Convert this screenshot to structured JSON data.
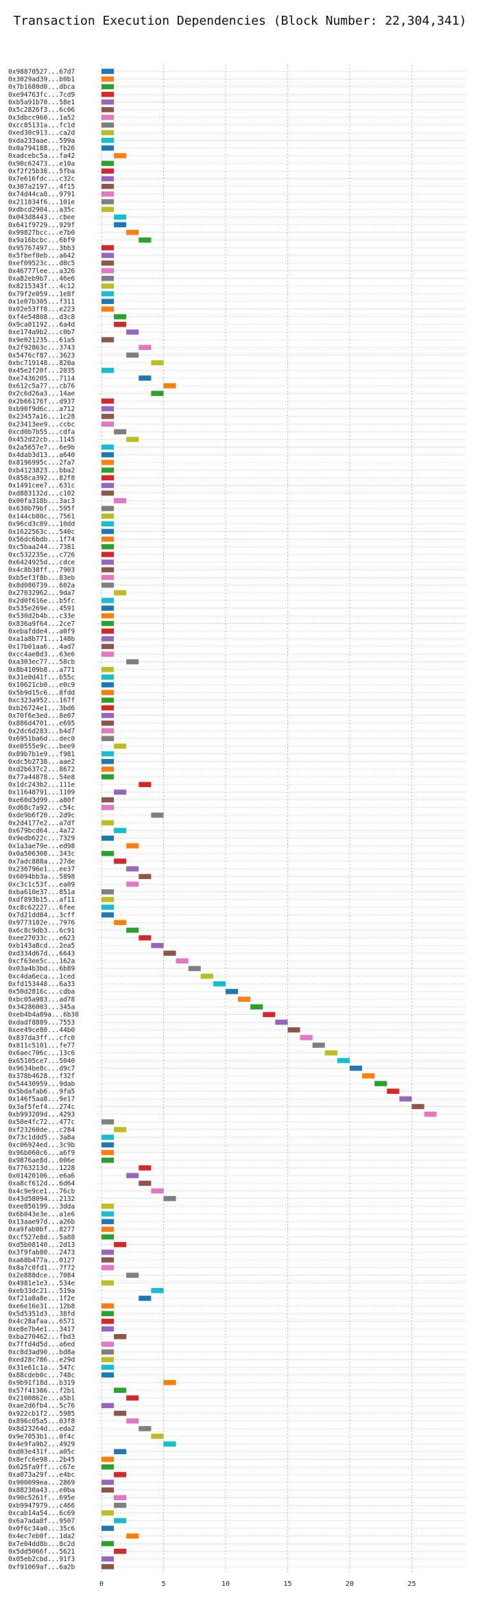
{
  "chart_data": {
    "type": "gantt",
    "title": "Transaction Execution Dependencies (Block Number: 22,304,341)",
    "xlabel": "",
    "ylabel": "",
    "xlim": [
      -1,
      28.5
    ],
    "xticks": [
      0,
      5,
      10,
      15,
      20,
      25
    ],
    "grid": true,
    "palette": [
      "#1f77b4",
      "#ff7f0e",
      "#2ca02c",
      "#d62728",
      "#9467bd",
      "#8c564b",
      "#e377c2",
      "#7f7f7f",
      "#bcbd22",
      "#17becf"
    ],
    "transactions": [
      {
        "label": "0x98870527...67d7",
        "start": 0
      },
      {
        "label": "0x3029ad39...b0b1",
        "start": 0
      },
      {
        "label": "0x7b1680d0...dbca",
        "start": 0
      },
      {
        "label": "0xe94763fc...7cd9",
        "start": 0
      },
      {
        "label": "0xb5a91b70...58e1",
        "start": 0
      },
      {
        "label": "0x5c2826f3...6c06",
        "start": 0
      },
      {
        "label": "0x3dbcc960...1a52",
        "start": 0
      },
      {
        "label": "0xcc85131a...fc1d",
        "start": 0
      },
      {
        "label": "0xed30c913...ca2d",
        "start": 0
      },
      {
        "label": "0xda233aae...599a",
        "start": 0
      },
      {
        "label": "0x0a794188...fb26",
        "start": 0
      },
      {
        "label": "0xadcebc5a...fa42",
        "start": 1
      },
      {
        "label": "0x90c62473...e10a",
        "start": 0
      },
      {
        "label": "0xf2f25b38...5fba",
        "start": 0
      },
      {
        "label": "0x7e616fdc...c32c",
        "start": 0
      },
      {
        "label": "0x307a2197...4f15",
        "start": 0
      },
      {
        "label": "0x74d44ca8...9791",
        "start": 0
      },
      {
        "label": "0x211834f6...101e",
        "start": 0
      },
      {
        "label": "0xdbcd2904...a35c",
        "start": 0
      },
      {
        "label": "0x043d8443...cbee",
        "start": 1
      },
      {
        "label": "0x641f9729...929f",
        "start": 1
      },
      {
        "label": "0x99827bcc...e7b0",
        "start": 2
      },
      {
        "label": "0x9a16bcbc...6bf9",
        "start": 3
      },
      {
        "label": "0x95767497...3bb3",
        "start": 0
      },
      {
        "label": "0x5fbef0eb...a642",
        "start": 0
      },
      {
        "label": "0xef09523c...d8c5",
        "start": 0
      },
      {
        "label": "0x46777lee...a326",
        "start": 0
      },
      {
        "label": "0xa82eb9b7...46e6",
        "start": 0
      },
      {
        "label": "0x8215343f...4c12",
        "start": 0
      },
      {
        "label": "0x79f2e059...1e8f",
        "start": 0
      },
      {
        "label": "0x1e07b305...f311",
        "start": 0
      },
      {
        "label": "0x02e53ff8...e223",
        "start": 0
      },
      {
        "label": "0xf4e54808...d3c8",
        "start": 1
      },
      {
        "label": "0x9ca01192...6a4d",
        "start": 1
      },
      {
        "label": "0xe174a9b2...c0b7",
        "start": 2
      },
      {
        "label": "0x9e021235...61a5",
        "start": 0
      },
      {
        "label": "0x2f92863c...3743",
        "start": 3
      },
      {
        "label": "0x5476cf87...3623",
        "start": 2
      },
      {
        "label": "0xbc719148...820a",
        "start": 4
      },
      {
        "label": "0x45e2f20f...2035",
        "start": 0
      },
      {
        "label": "0xe7436205...7114",
        "start": 3
      },
      {
        "label": "0x612c5a77...cb76",
        "start": 5
      },
      {
        "label": "0x2c6d26a3...14ae",
        "start": 4
      },
      {
        "label": "0x2b66176f...d937",
        "start": 0
      },
      {
        "label": "0xb90f9d6c...a712",
        "start": 0
      },
      {
        "label": "0x23457a16...1c28",
        "start": 0
      },
      {
        "label": "0x23413ee9...ccbc",
        "start": 0
      },
      {
        "label": "0xcd0b7b55...cdfa",
        "start": 1
      },
      {
        "label": "0x452d22cb...1145",
        "start": 2
      },
      {
        "label": "0x2a5657e7...6e9b",
        "start": 0
      },
      {
        "label": "0x4dab3d13...a640",
        "start": 0
      },
      {
        "label": "0x8196995c...2fa7",
        "start": 0
      },
      {
        "label": "0xb4123823...bba2",
        "start": 0
      },
      {
        "label": "0x858ca392...82f8",
        "start": 0
      },
      {
        "label": "0x1491cee7...631c",
        "start": 0
      },
      {
        "label": "0xd883132d...c102",
        "start": 0
      },
      {
        "label": "0x00fa318b...3ac3",
        "start": 1
      },
      {
        "label": "0x630b79bf...595f",
        "start": 0
      },
      {
        "label": "0x144cb80c...7561",
        "start": 0
      },
      {
        "label": "0x96cd3c89...10dd",
        "start": 0
      },
      {
        "label": "0x1622563c...540c",
        "start": 0
      },
      {
        "label": "0x56dc6bdb...1f74",
        "start": 0
      },
      {
        "label": "0xc5baa244...7381",
        "start": 0
      },
      {
        "label": "0xc532235e...c726",
        "start": 0
      },
      {
        "label": "0x6424925d...cdce",
        "start": 0
      },
      {
        "label": "0x4c8b38ff...7903",
        "start": 0
      },
      {
        "label": "0xb5ef3f8b...83eb",
        "start": 0
      },
      {
        "label": "0x8d080739...602a",
        "start": 0
      },
      {
        "label": "0x27032962...9da7",
        "start": 1
      },
      {
        "label": "0x2d0f616e...b5fc",
        "start": 0
      },
      {
        "label": "0x535e269e...4591",
        "start": 0
      },
      {
        "label": "0x530d2b4b...c33e",
        "start": 0
      },
      {
        "label": "0x836a9f64...2ce7",
        "start": 0
      },
      {
        "label": "0xebafdde4...a0f9",
        "start": 0
      },
      {
        "label": "0xa1a8b771...148b",
        "start": 0
      },
      {
        "label": "0x17b01aa6...4ad7",
        "start": 0
      },
      {
        "label": "0xcc4ae8d3...63e6",
        "start": 0
      },
      {
        "label": "0xa303ec77...58cb",
        "start": 2
      },
      {
        "label": "0x8b4109b8...a771",
        "start": 0
      },
      {
        "label": "0x31e0d41f...b55c",
        "start": 0
      },
      {
        "label": "0x10621cb0...e0c9",
        "start": 0
      },
      {
        "label": "0x5b9d15c6...8fdd",
        "start": 0
      },
      {
        "label": "0xc323a952...167f",
        "start": 0
      },
      {
        "label": "0xb26724e1...3bd6",
        "start": 0
      },
      {
        "label": "0x70f6e3ed...8e07",
        "start": 0
      },
      {
        "label": "0x886d4701...e695",
        "start": 0
      },
      {
        "label": "0x2dc6d283...b4d7",
        "start": 0
      },
      {
        "label": "0x6951ba6d...dec0",
        "start": 0
      },
      {
        "label": "0xe0555e9c...bee9",
        "start": 1
      },
      {
        "label": "0x89b7b1e9...f981",
        "start": 0
      },
      {
        "label": "0xdc5b2738...aae2",
        "start": 0
      },
      {
        "label": "0xd2b637c2...8672",
        "start": 0
      },
      {
        "label": "0x77a44878...54e8",
        "start": 0
      },
      {
        "label": "0x1dc243b2...111e",
        "start": 3
      },
      {
        "label": "0x11648791...1109",
        "start": 1
      },
      {
        "label": "0xe60d3d99...a80f",
        "start": 0
      },
      {
        "label": "0xd68c7a92...c54c",
        "start": 0
      },
      {
        "label": "0xde9b6f20...2d9c",
        "start": 4
      },
      {
        "label": "0x2d4177e2...a7df",
        "start": 0
      },
      {
        "label": "0x679bcd64...4a72",
        "start": 1
      },
      {
        "label": "0x9edb622c...7329",
        "start": 0
      },
      {
        "label": "0x1a3ae79e...ed98",
        "start": 2
      },
      {
        "label": "0x0a506308...343c",
        "start": 0
      },
      {
        "label": "0x7adc888a...27de",
        "start": 1
      },
      {
        "label": "0x230796e1...ee37",
        "start": 2
      },
      {
        "label": "0x6094bb3a...5898",
        "start": 3
      },
      {
        "label": "0xc3c1c53f...ea09",
        "start": 2
      },
      {
        "label": "0xba610e37...851a",
        "start": 0
      },
      {
        "label": "0xdf893b15...af11",
        "start": 0
      },
      {
        "label": "0xc8c62227...6fee",
        "start": 0
      },
      {
        "label": "0x7d21dd84...3cff",
        "start": 0
      },
      {
        "label": "0x9773182e...7976",
        "start": 1
      },
      {
        "label": "0x6c8c9db3...6c91",
        "start": 2
      },
      {
        "label": "0xee27033c...e623",
        "start": 3
      },
      {
        "label": "0xb143a8cd...2ea5",
        "start": 4
      },
      {
        "label": "0xd334d67d...6643",
        "start": 5
      },
      {
        "label": "0xcf63ee5c...162a",
        "start": 6
      },
      {
        "label": "0x03a4b3bd...6b89",
        "start": 7
      },
      {
        "label": "0xc4da6eca...1ced",
        "start": 8
      },
      {
        "label": "0xfd153448...6a33",
        "start": 9
      },
      {
        "label": "0x50d2816c...cdba",
        "start": 10
      },
      {
        "label": "0xbc05a983...ad78",
        "start": 11
      },
      {
        "label": "0x34286003...345a",
        "start": 12
      },
      {
        "label": "0xeb4b4a89a...6b30",
        "start": 13
      },
      {
        "label": "0xdadf8889...7553",
        "start": 14
      },
      {
        "label": "0xee49ce80...44b0",
        "start": 15
      },
      {
        "label": "0x837da3ff...cfc0",
        "start": 16
      },
      {
        "label": "0x811c5101...fe77",
        "start": 17
      },
      {
        "label": "0x6aec706c...13c6",
        "start": 18
      },
      {
        "label": "0x65105ce7...5040",
        "start": 19
      },
      {
        "label": "0x9634be8c...d9c7",
        "start": 20
      },
      {
        "label": "0x378b4628...f32f",
        "start": 21
      },
      {
        "label": "0x54430959...9dab",
        "start": 22
      },
      {
        "label": "0x5bdafab6...9fa5",
        "start": 23
      },
      {
        "label": "0x146f5aa8...9e17",
        "start": 24
      },
      {
        "label": "0x3af5fef4...274c",
        "start": 25
      },
      {
        "label": "0xb993209d...4293",
        "start": 26
      },
      {
        "label": "0x50e4fc72...477c",
        "start": 0
      },
      {
        "label": "0xf23260de...c284",
        "start": 1
      },
      {
        "label": "0x73c1ddd5...3a8a",
        "start": 0
      },
      {
        "label": "0xc06924ed...3c9b",
        "start": 0
      },
      {
        "label": "0x96b060c6...a6f9",
        "start": 0
      },
      {
        "label": "0x9876ae8d...006e",
        "start": 0
      },
      {
        "label": "0x7763213d...1228",
        "start": 3
      },
      {
        "label": "0x01420106...e6a6",
        "start": 2
      },
      {
        "label": "0xa8cf612d...6d64",
        "start": 3
      },
      {
        "label": "0x4c9e9ce1...76cb",
        "start": 4
      },
      {
        "label": "0x43d58094...2132",
        "start": 5
      },
      {
        "label": "0xee850199...3dda",
        "start": 0
      },
      {
        "label": "0x6b043e3e...a1e6",
        "start": 0
      },
      {
        "label": "0x13aae97d...a26b",
        "start": 0
      },
      {
        "label": "0xa9fab0bf...8277",
        "start": 0
      },
      {
        "label": "0xcf527e8d...5a88",
        "start": 0
      },
      {
        "label": "0xd5b08140...2d13",
        "start": 1
      },
      {
        "label": "0x3f9fab80...2473",
        "start": 0
      },
      {
        "label": "0xa68b477a...0127",
        "start": 0
      },
      {
        "label": "0x8a7c0fd1...7f72",
        "start": 0
      },
      {
        "label": "0x2e888dce...7084",
        "start": 2
      },
      {
        "label": "0x4981e1e3...534e",
        "start": 0
      },
      {
        "label": "0xeb33dc21...519a",
        "start": 4
      },
      {
        "label": "0xf21a8a8e...1f2e",
        "start": 3
      },
      {
        "label": "0xe6e16e31...12b8",
        "start": 0
      },
      {
        "label": "0x5d5351d3...38fd",
        "start": 0
      },
      {
        "label": "0x4c28afaa...6571",
        "start": 0
      },
      {
        "label": "0xe8e7b4e1...3417",
        "start": 0
      },
      {
        "label": "0xba270462...fbd3",
        "start": 1
      },
      {
        "label": "0x7ffd4d5d...a6ed",
        "start": 0
      },
      {
        "label": "0xc8d3ad90...bd8a",
        "start": 0
      },
      {
        "label": "0xed28c786...e29d",
        "start": 0
      },
      {
        "label": "0x31e61c1a...547c",
        "start": 0
      },
      {
        "label": "0x88cdeb0c...748c",
        "start": 0
      },
      {
        "label": "0x9b91f18d...b319",
        "start": 5
      },
      {
        "label": "0x57f41386...f2b1",
        "start": 1
      },
      {
        "label": "0x2100862e...a5b1",
        "start": 2
      },
      {
        "label": "0xae2d6fb4...5c76",
        "start": 0
      },
      {
        "label": "0x922cb1f2...5985",
        "start": 1
      },
      {
        "label": "0x896c05a5...03f8",
        "start": 2
      },
      {
        "label": "0x8d23264d...eda2",
        "start": 3
      },
      {
        "label": "0x9e7053b1...0f4c",
        "start": 4
      },
      {
        "label": "0x4e9fa9b2...4929",
        "start": 5
      },
      {
        "label": "0xd03e431f...a05c",
        "start": 1
      },
      {
        "label": "0x8efc6e98...2b45",
        "start": 0
      },
      {
        "label": "0x625fa9ff...c67e",
        "start": 0
      },
      {
        "label": "0xa073a29f...e4bc",
        "start": 1
      },
      {
        "label": "0x900099ea...2869",
        "start": 0
      },
      {
        "label": "0x88230a43...e0ba",
        "start": 0
      },
      {
        "label": "0x90c5261f...695e",
        "start": 1
      },
      {
        "label": "0xb9947979...c466",
        "start": 1
      },
      {
        "label": "0xcab14a54...6c69",
        "start": 0
      },
      {
        "label": "0x6a7ada8f...9507",
        "start": 1
      },
      {
        "label": "0x0f6c34a0...35c6",
        "start": 0
      },
      {
        "label": "0x4ec7eb0f...1da2",
        "start": 2
      },
      {
        "label": "0x7e04dd8b...8c2d",
        "start": 0
      },
      {
        "label": "0x5dd5066f...5621",
        "start": 1
      },
      {
        "label": "0x05eb2cbd...91f3",
        "start": 0
      },
      {
        "label": "0xf91069af...6a2b",
        "start": 0
      }
    ]
  }
}
